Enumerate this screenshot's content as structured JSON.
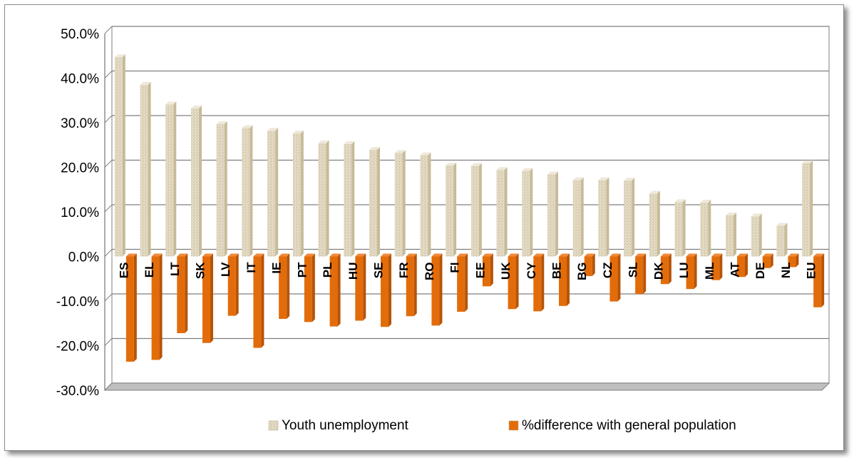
{
  "chart_data": {
    "type": "bar",
    "title": "",
    "xlabel": "",
    "ylabel": "",
    "categories": [
      "ES",
      "EL",
      "LT",
      "SK",
      "LV",
      "IT",
      "IE",
      "PT",
      "PL",
      "HU",
      "SE",
      "FR",
      "RO",
      "FI",
      "EE",
      "UK",
      "CY",
      "BE",
      "BG",
      "CZ",
      "SL",
      "DK",
      "LU",
      "ML",
      "AT",
      "DE",
      "NL",
      "EU"
    ],
    "series": [
      {
        "name": "Youth unemployment",
        "color": "#ddd3b8",
        "values": [
          44.7,
          38.5,
          34.1,
          33.2,
          29.7,
          28.8,
          28.2,
          27.6,
          25.4,
          25.2,
          23.9,
          23.2,
          22.7,
          20.4,
          20.3,
          19.4,
          19.2,
          18.4,
          17.1,
          17.1,
          17.0,
          14.1,
          12.2,
          12.1,
          9.2,
          9.0,
          6.9,
          20.9
        ]
      },
      {
        "name": "%difference with general population",
        "color": "#e36c0a",
        "values": [
          -23.6,
          -23.2,
          -17.2,
          -19.4,
          -13.3,
          -20.5,
          -14.0,
          -14.7,
          -15.7,
          -14.4,
          -15.8,
          -13.4,
          -15.5,
          -12.4,
          -6.7,
          -11.8,
          -12.3,
          -11.1,
          -4.4,
          -10.1,
          -8.4,
          -6.2,
          -7.3,
          -5.3,
          -4.6,
          -2.6,
          -2.4,
          -11.4
        ]
      }
    ],
    "ylim": [
      -30,
      50
    ],
    "yticks": [
      50,
      40,
      30,
      20,
      10,
      0,
      -10,
      -20,
      -30
    ],
    "ytick_labels": [
      "50.0%",
      "40.0%",
      "30.0%",
      "20.0%",
      "10.0%",
      "0.0%",
      "-10.0%",
      "-20.0%",
      "-30.0%"
    ],
    "grid": true,
    "legend_position": "bottom"
  }
}
